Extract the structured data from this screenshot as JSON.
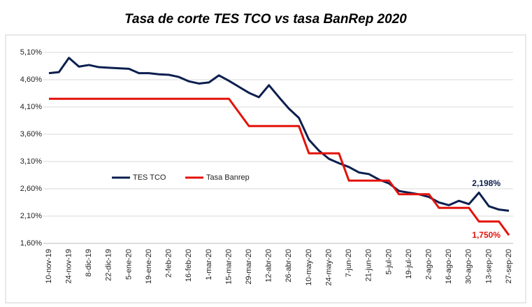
{
  "chart_data": {
    "type": "line",
    "title": "Tasa de corte TES TCO vs tasa BanRep 2020",
    "categories": [
      "10-nov-19",
      null,
      "24-nov-19",
      null,
      "8-dic-19",
      null,
      "22-dic-19",
      null,
      "5-ene-20",
      null,
      "19-ene-20",
      null,
      "2-feb-20",
      null,
      "16-feb-20",
      null,
      "1-mar-20",
      null,
      "15-mar-20",
      null,
      "29-mar-20",
      null,
      "12-abr-20",
      null,
      "26-abr-20",
      null,
      "10-may-20",
      null,
      "24-may-20",
      null,
      "7-jun-20",
      null,
      "21-jun-20",
      null,
      "5-jul-20",
      null,
      "19-jul-20",
      null,
      "2-ago-20",
      null,
      "16-ago-20",
      null,
      "30-ago-20",
      null,
      "13-sep-20",
      null,
      "27-sep-20"
    ],
    "series": [
      {
        "name": "TES TCO",
        "color": "#0d1f4f",
        "values": [
          4.72,
          4.74,
          5.0,
          4.84,
          4.87,
          4.83,
          4.82,
          4.81,
          4.8,
          4.72,
          4.72,
          4.7,
          4.69,
          4.65,
          4.57,
          4.53,
          4.55,
          4.68,
          4.58,
          4.47,
          4.36,
          4.28,
          4.5,
          4.28,
          4.07,
          3.9,
          3.5,
          3.3,
          3.15,
          3.07,
          3.0,
          2.9,
          2.87,
          2.77,
          2.7,
          2.56,
          2.53,
          2.5,
          2.45,
          2.35,
          2.3,
          2.38,
          2.32,
          2.53,
          2.28,
          2.22,
          2.198
        ]
      },
      {
        "name": "Tasa Banrep",
        "color": "#e3120b",
        "values": [
          4.25,
          4.25,
          4.25,
          4.25,
          4.25,
          4.25,
          4.25,
          4.25,
          4.25,
          4.25,
          4.25,
          4.25,
          4.25,
          4.25,
          4.25,
          4.25,
          4.25,
          4.25,
          4.25,
          4.0,
          3.75,
          3.75,
          3.75,
          3.75,
          3.75,
          3.75,
          3.25,
          3.25,
          3.25,
          3.25,
          2.75,
          2.75,
          2.75,
          2.75,
          2.75,
          2.5,
          2.5,
          2.5,
          2.5,
          2.25,
          2.25,
          2.25,
          2.25,
          2.0,
          2.0,
          2.0,
          1.75
        ]
      }
    ],
    "annotations": [
      "2,198%",
      "1,750%"
    ],
    "ylim": [
      1.6,
      5.1
    ],
    "yticks": [
      {
        "value": 1.6,
        "label": "1,60%"
      },
      {
        "value": 2.1,
        "label": "2,10%"
      },
      {
        "value": 2.6,
        "label": "2,60%"
      },
      {
        "value": 3.1,
        "label": "3,10%"
      },
      {
        "value": 3.6,
        "label": "3,60%"
      },
      {
        "value": 4.1,
        "label": "4,10%"
      },
      {
        "value": 4.6,
        "label": "4,60%"
      },
      {
        "value": 5.1,
        "label": "5,10%"
      }
    ],
    "grid": true,
    "legend": "left"
  }
}
